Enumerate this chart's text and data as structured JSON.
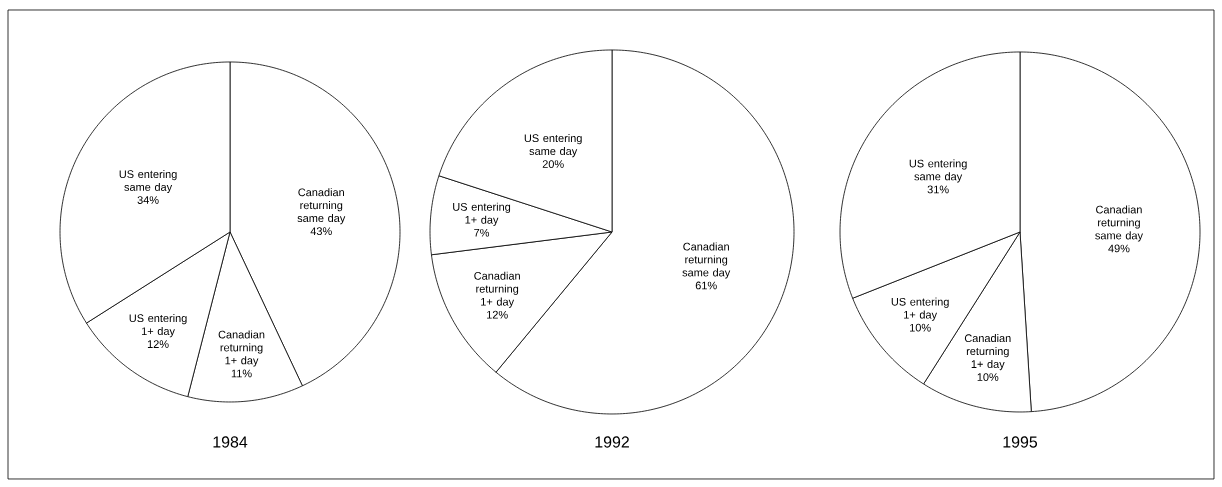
{
  "chart_data": [
    {
      "type": "pie",
      "title": "1984",
      "categories": [
        "Canadian returning same day",
        "Canadian returning 1+ day",
        "US entering 1+ day",
        "US entering same day"
      ],
      "values": [
        43,
        11,
        12,
        34
      ],
      "value_labels": [
        "43%",
        "11%",
        "12%",
        "34%"
      ],
      "colors": [
        "#ffffff",
        "#ffffff",
        "#ffffff",
        "#ffffff"
      ]
    },
    {
      "type": "pie",
      "title": "1992",
      "categories": [
        "Canadian returning same day",
        "Canadian returning 1+ day",
        "US entering 1+ day",
        "US entering same day"
      ],
      "values": [
        61,
        12,
        7,
        20
      ],
      "value_labels": [
        "61%",
        "12%",
        "7%",
        "20%"
      ],
      "colors": [
        "#ffffff",
        "#ffffff",
        "#ffffff",
        "#ffffff"
      ]
    },
    {
      "type": "pie",
      "title": "1995",
      "categories": [
        "Canadian returning same day",
        "Canadian returning 1+ day",
        "US entering 1+ day",
        "US entering same day"
      ],
      "values": [
        49,
        10,
        10,
        31
      ],
      "value_labels": [
        "49%",
        "10%",
        "10%",
        "31%"
      ],
      "colors": [
        "#ffffff",
        "#ffffff",
        "#ffffff",
        "#ffffff"
      ]
    }
  ]
}
